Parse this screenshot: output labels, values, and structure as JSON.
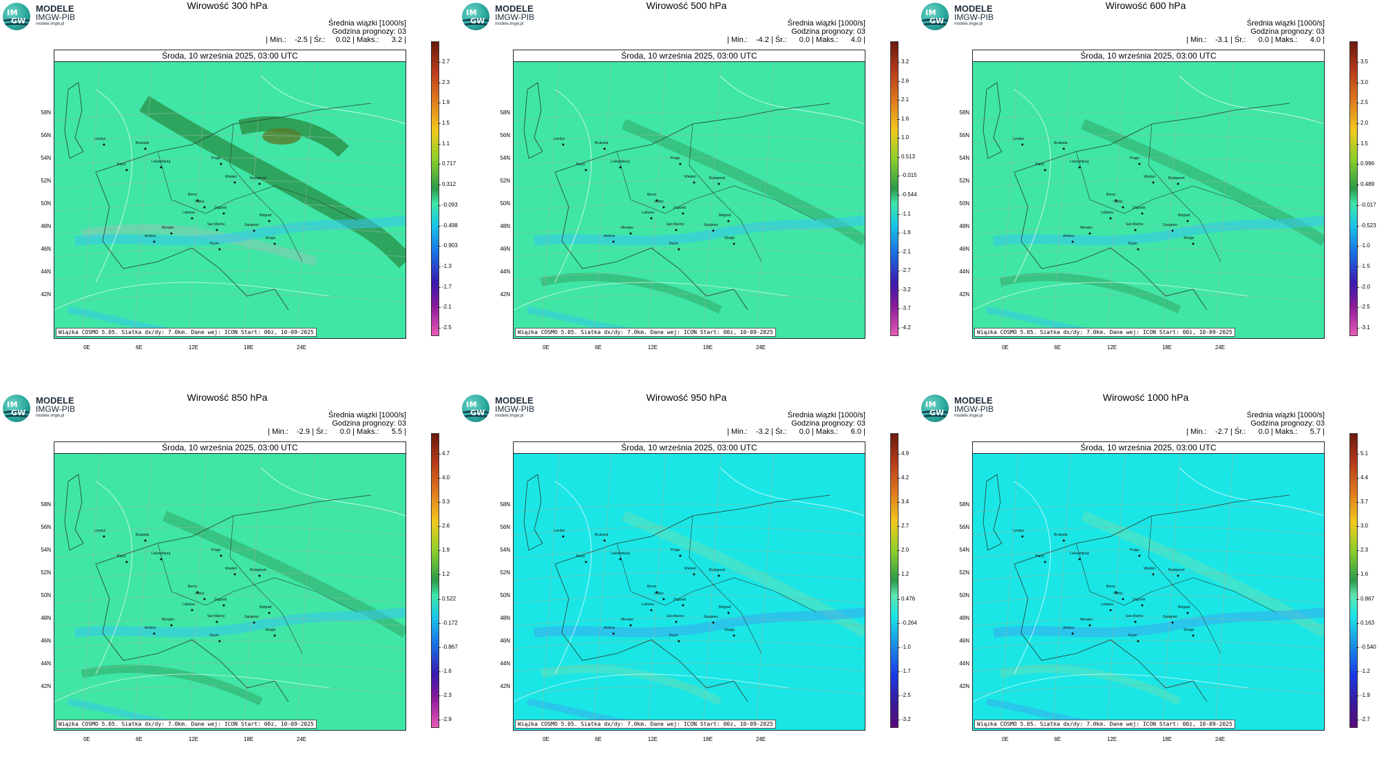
{
  "brand": "MODELE",
  "org": "IMGW-PIB",
  "site": "modele.imgw.pl",
  "logo_text_top": "IM",
  "logo_text_bottom": "GW",
  "date_line": "Środa, 10 września 2025, 03:00 UTC",
  "stats_line1": "Średnia wiązki [1000/s]",
  "stats_line2": "Godzina prognozy: 03",
  "footer": "Wiązka COSMO 5.05. Siatka dx/dy: 7.0km. Dane wej: ICON Start: 00z, 10-09-2025",
  "lat_labels": [
    "58N",
    "56N",
    "54N",
    "52N",
    "50N",
    "48N",
    "46N",
    "44N",
    "42N"
  ],
  "lon_labels": [
    "0E",
    "6E",
    "12E",
    "18E",
    "24E"
  ],
  "cities": [
    "Londyn",
    "Bruksela",
    "Paryż",
    "Luksemburg",
    "Praga",
    "Wiedeń",
    "Budapeszt",
    "Berno",
    "Vaduz",
    "Zagrzeb",
    "Lublana",
    "Belgrad",
    "San Marino",
    "Sarajewo",
    "Andora",
    "Rzym",
    "Skopje",
    "Monako"
  ],
  "panels": [
    {
      "title": "Wirowość 300 hPa",
      "stats_line3": "| Min.:    -2.5 | Śr.:     0.02 | Maks.:      3.2 |",
      "colorbar": [
        "2.7",
        "2.3",
        "1.9",
        "1.5",
        "1.1",
        "0.717",
        "0.312",
        "-0.093",
        "-0.498",
        "-0.903",
        "-1.3",
        "-1.7",
        "-2.1",
        "-2.5"
      ],
      "background": "#3fe6a6",
      "palette": "green"
    },
    {
      "title": "Wirowość 500 hPa",
      "stats_line3": "| Min.:    -4.2 | Śr.:      0.0 | Maks.:      4.0 |",
      "colorbar": [
        "3.2",
        "2.6",
        "2.1",
        "1.6",
        "1.0",
        "0.513",
        "-0.015",
        "-0.544",
        "-1.1",
        "-1.6",
        "-2.1",
        "-2.7",
        "-3.2",
        "-3.7",
        "-4.2"
      ],
      "background": "#3fe6a6",
      "palette": "green"
    },
    {
      "title": "Wirowość 600 hPa",
      "stats_line3": "| Min.:    -3.1 | Śr.:      0.0 | Maks.:      4.0 |",
      "colorbar": [
        "3.5",
        "3.0",
        "2.5",
        "2.0",
        "1.5",
        "0.996",
        "0.489",
        "-0.017",
        "-0.523",
        "-1.0",
        "-1.5",
        "-2.0",
        "-2.5",
        "-3.1"
      ],
      "background": "#3fe6a6",
      "palette": "green"
    },
    {
      "title": "Wirowość 850 hPa",
      "stats_line3": "| Min.:    -2.9 | Śr.:      0.0 | Maks.:      5.5 |",
      "colorbar": [
        "4.7",
        "4.0",
        "3.3",
        "2.6",
        "1.9",
        "1.2",
        "0.522",
        "-0.172",
        "-0.867",
        "-1.6",
        "-2.3",
        "-2.9"
      ],
      "background": "#3fe6a6",
      "palette": "green"
    },
    {
      "title": "Wirowość 950 hPa",
      "stats_line3": "| Min.:    -3.2 | Śr.:      0.0 | Maks.:      6.0 |",
      "colorbar": [
        "4.9",
        "4.2",
        "3.4",
        "2.7",
        "2.0",
        "1.2",
        "0.476",
        "-0.264",
        "-1.0",
        "-1.7",
        "-2.5",
        "-3.2"
      ],
      "background": "#1ae6e6",
      "palette": "cyan"
    },
    {
      "title": "Wirowość 1000 hPa",
      "stats_line3": "| Min.:    -2.7 | Śr.:      0.0 | Maks.:      5.7 |",
      "colorbar": [
        "5.1",
        "4.4",
        "3.7",
        "3.0",
        "2.3",
        "1.6",
        "0.867",
        "0.163",
        "-0.540",
        "-1.2",
        "-1.9",
        "-2.7"
      ],
      "background": "#1ae6e6",
      "palette": "cyan"
    }
  ]
}
